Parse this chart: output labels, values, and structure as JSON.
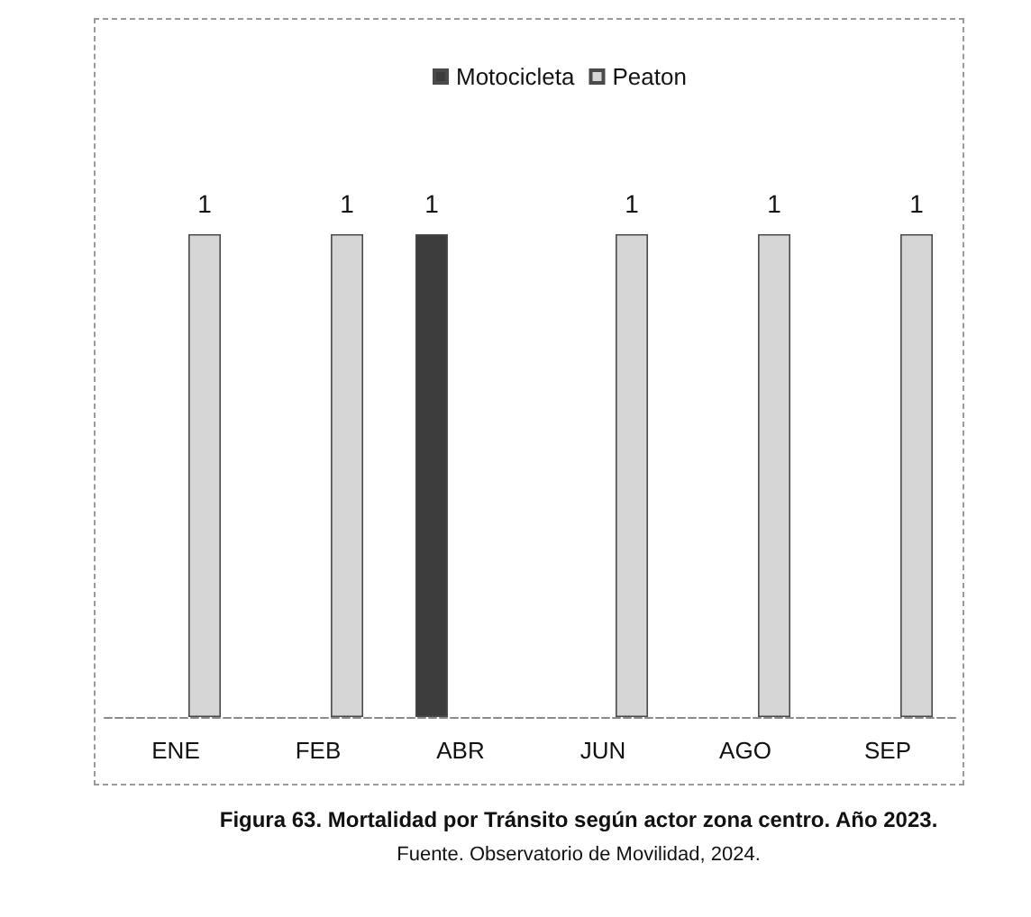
{
  "chart_data": {
    "type": "bar",
    "title": "Figura 63. Mortalidad por Tránsito según actor zona centro. Año 2023.",
    "annotations": [
      "Fuente. Observatorio de Movilidad, 2024."
    ],
    "categories": [
      "ENE",
      "FEB",
      "ABR",
      "JUN",
      "AGO",
      "SEP"
    ],
    "series": [
      {
        "name": "Motocicleta",
        "color": "#3c3c3c",
        "values": [
          null,
          null,
          1,
          null,
          null,
          null
        ]
      },
      {
        "name": "Peaton",
        "color": "#d6d6d6",
        "values": [
          1,
          1,
          null,
          1,
          1,
          1
        ]
      }
    ],
    "tick_labels": "x",
    "data_labels": true,
    "legend": "top"
  }
}
